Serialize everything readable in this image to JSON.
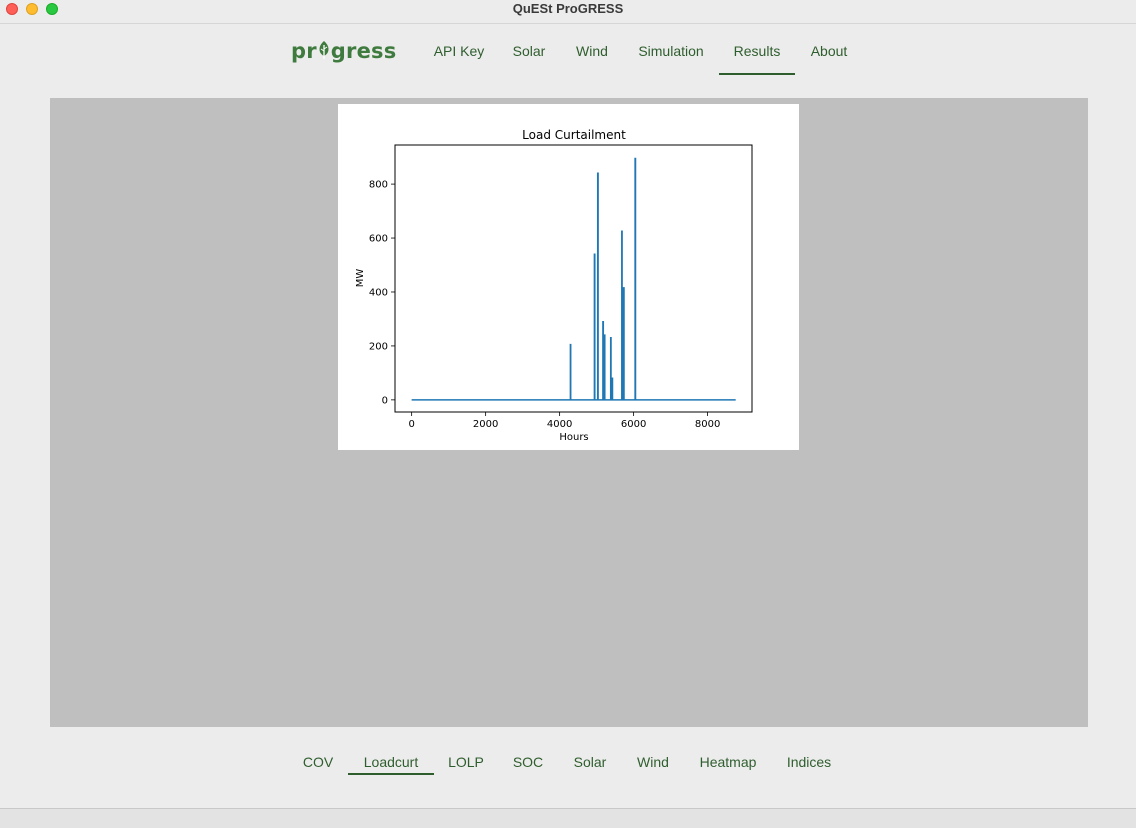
{
  "window": {
    "title": "QuESt ProGRESS"
  },
  "logo": {
    "text": "progress",
    "color": "#3f7b3e"
  },
  "top_nav": [
    {
      "label": "API Key",
      "active": false
    },
    {
      "label": "Solar",
      "active": false
    },
    {
      "label": "Wind",
      "active": false
    },
    {
      "label": "Simulation",
      "active": false
    },
    {
      "label": "Results",
      "active": true
    },
    {
      "label": "About",
      "active": false
    }
  ],
  "bottom_nav": [
    {
      "label": "COV",
      "active": false
    },
    {
      "label": "Loadcurt",
      "active": true
    },
    {
      "label": "LOLP",
      "active": false
    },
    {
      "label": "SOC",
      "active": false
    },
    {
      "label": "Solar",
      "active": false
    },
    {
      "label": "Wind",
      "active": false
    },
    {
      "label": "Heatmap",
      "active": false
    },
    {
      "label": "Indices",
      "active": false
    }
  ],
  "colors": {
    "accent": "#2f5e2e",
    "panel_bg": "#bfbfbf",
    "line": "#1f77b4"
  },
  "chart_data": {
    "type": "line",
    "title": "Load Curtailment",
    "xlabel": "Hours",
    "ylabel": "MW",
    "xlim": [
      -450,
      9200
    ],
    "ylim": [
      -45,
      945
    ],
    "xticks": [
      0,
      2000,
      4000,
      6000,
      8000
    ],
    "yticks": [
      0,
      200,
      400,
      600,
      800
    ],
    "grid": false,
    "series": [
      {
        "x": [
          0,
          4290,
          4290,
          4300,
          4300,
          4940,
          4940,
          4950,
          4950,
          5030,
          5030,
          5040,
          5040,
          5170,
          5170,
          5180,
          5180,
          5210,
          5210,
          5220,
          5220,
          5380,
          5380,
          5390,
          5390,
          5420,
          5420,
          5430,
          5430,
          5680,
          5680,
          5690,
          5690,
          5730,
          5730,
          5740,
          5740,
          6040,
          6040,
          6050,
          6050,
          8760
        ],
        "y": [
          0,
          0,
          205,
          205,
          0,
          0,
          540,
          540,
          0,
          0,
          840,
          840,
          0,
          0,
          290,
          290,
          0,
          0,
          240,
          240,
          0,
          0,
          230,
          230,
          0,
          0,
          80,
          80,
          0,
          0,
          625,
          625,
          0,
          0,
          415,
          415,
          0,
          0,
          895,
          895,
          0,
          0
        ]
      }
    ]
  }
}
